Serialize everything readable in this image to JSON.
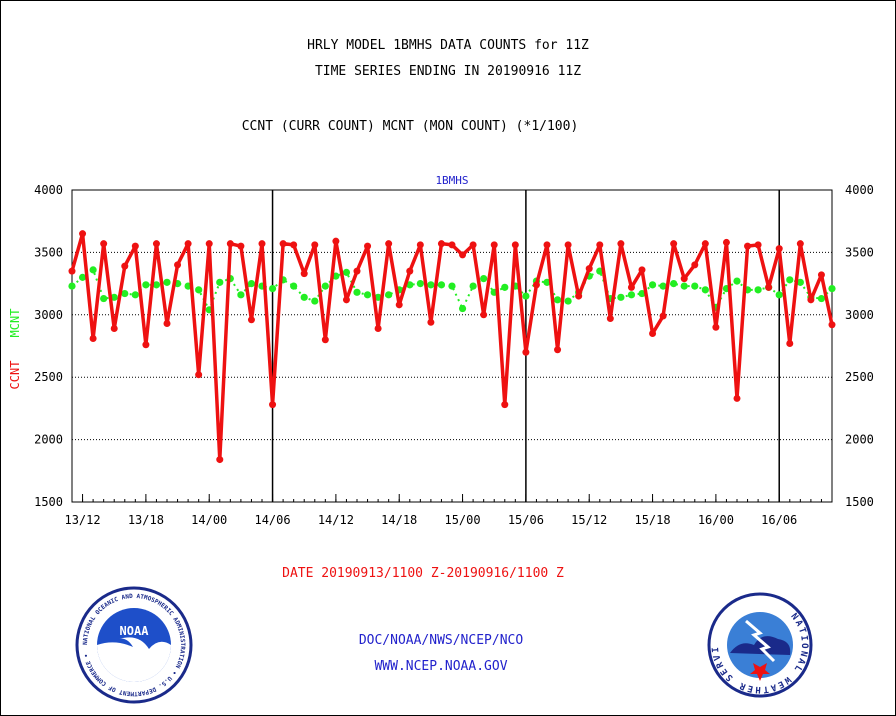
{
  "header": {
    "title_line1": "HRLY MODEL 1BMHS DATA COUNTS for 11Z",
    "title_line2": "TIME SERIES ENDING IN 20190916 11Z",
    "subtitle": "CCNT (CURR COUNT) MCNT (MON COUNT) (*1/100)"
  },
  "footer": {
    "date_range": "DATE 20190913/1100 Z-20190916/1100 Z",
    "org_line": "DOC/NOAA/NWS/NCEP/NCO",
    "url": "WWW.NCEP.NOAA.GOV"
  },
  "logos": {
    "noaa_text": "NOAA",
    "noaa_ring": "NATIONAL OCEANIC AND ATMOSPHERIC ADMINISTRATION • U.S. DEPARTMENT OF COMMERCE •",
    "nws_ring": "NATIONAL WEATHER SERVICE"
  },
  "colors": {
    "ccnt": "#ee1111",
    "mcnt": "#22ee22",
    "panel_title": "#2222cc",
    "footer_blue": "#2222cc"
  },
  "chart_data": {
    "type": "line",
    "title": "1BMHS",
    "ylabel_left": [
      "CCNT",
      "MCNT"
    ],
    "ylim": [
      1500,
      4000
    ],
    "yticks": [
      "4000",
      "3500",
      "3000",
      "2500",
      "2000",
      "1500"
    ],
    "ytick_values": [
      4000,
      3500,
      3000,
      2500,
      2000,
      1500
    ],
    "gridlines_y": [
      3500,
      3000,
      2500,
      2000
    ],
    "x_unit": "hours from 20190913/1100 Z",
    "xlim": [
      0,
      72
    ],
    "xticks": [
      "13/12",
      "13/18",
      "14/00",
      "14/06",
      "14/12",
      "14/18",
      "15/00",
      "15/06",
      "15/12",
      "15/18",
      "16/00",
      "16/06"
    ],
    "xtick_hours": [
      1,
      7,
      13,
      19,
      25,
      31,
      37,
      43,
      49,
      55,
      61,
      67
    ],
    "day_boundaries_hours": [
      19,
      43,
      67
    ],
    "series": [
      {
        "name": "CCNT",
        "values": [
          3350,
          3650,
          2810,
          3570,
          2890,
          3390,
          3550,
          2760,
          3570,
          2930,
          3400,
          3570,
          2520,
          3570,
          1840,
          3570,
          3550,
          2960,
          3570,
          2280,
          3570,
          3560,
          3330,
          3560,
          2800,
          3590,
          3120,
          3350,
          3550,
          2890,
          3570,
          3080,
          3350,
          3560,
          2940,
          3570,
          3560,
          3480,
          3560,
          3000,
          3560,
          2280,
          3560,
          2700,
          3240,
          3560,
          2720,
          3560,
          3150,
          3370,
          3560,
          2970,
          3570,
          3220,
          3360,
          2850,
          2990,
          3570,
          3290,
          3400,
          3570,
          2900,
          3580,
          2330,
          3550,
          3560,
          3220,
          3530,
          2770,
          3570,
          3120,
          3320,
          2920
        ]
      },
      {
        "name": "MCNT",
        "values": [
          3230,
          3300,
          3360,
          3130,
          3140,
          3170,
          3160,
          3240,
          3240,
          3260,
          3250,
          3230,
          3200,
          3040,
          3260,
          3290,
          3160,
          3250,
          3230,
          3210,
          3280,
          3230,
          3140,
          3110,
          3230,
          3310,
          3340,
          3180,
          3160,
          3140,
          3160,
          3200,
          3240,
          3250,
          3240,
          3240,
          3230,
          3050,
          3230,
          3290,
          3180,
          3220,
          3230,
          3150,
          3270,
          3260,
          3120,
          3110,
          3180,
          3310,
          3350,
          3130,
          3140,
          3160,
          3170,
          3240,
          3230,
          3250,
          3230,
          3230,
          3200,
          3060,
          3210,
          3270,
          3200,
          3200,
          3220,
          3160,
          3280,
          3260,
          3140,
          3130,
          3210
        ]
      }
    ]
  }
}
